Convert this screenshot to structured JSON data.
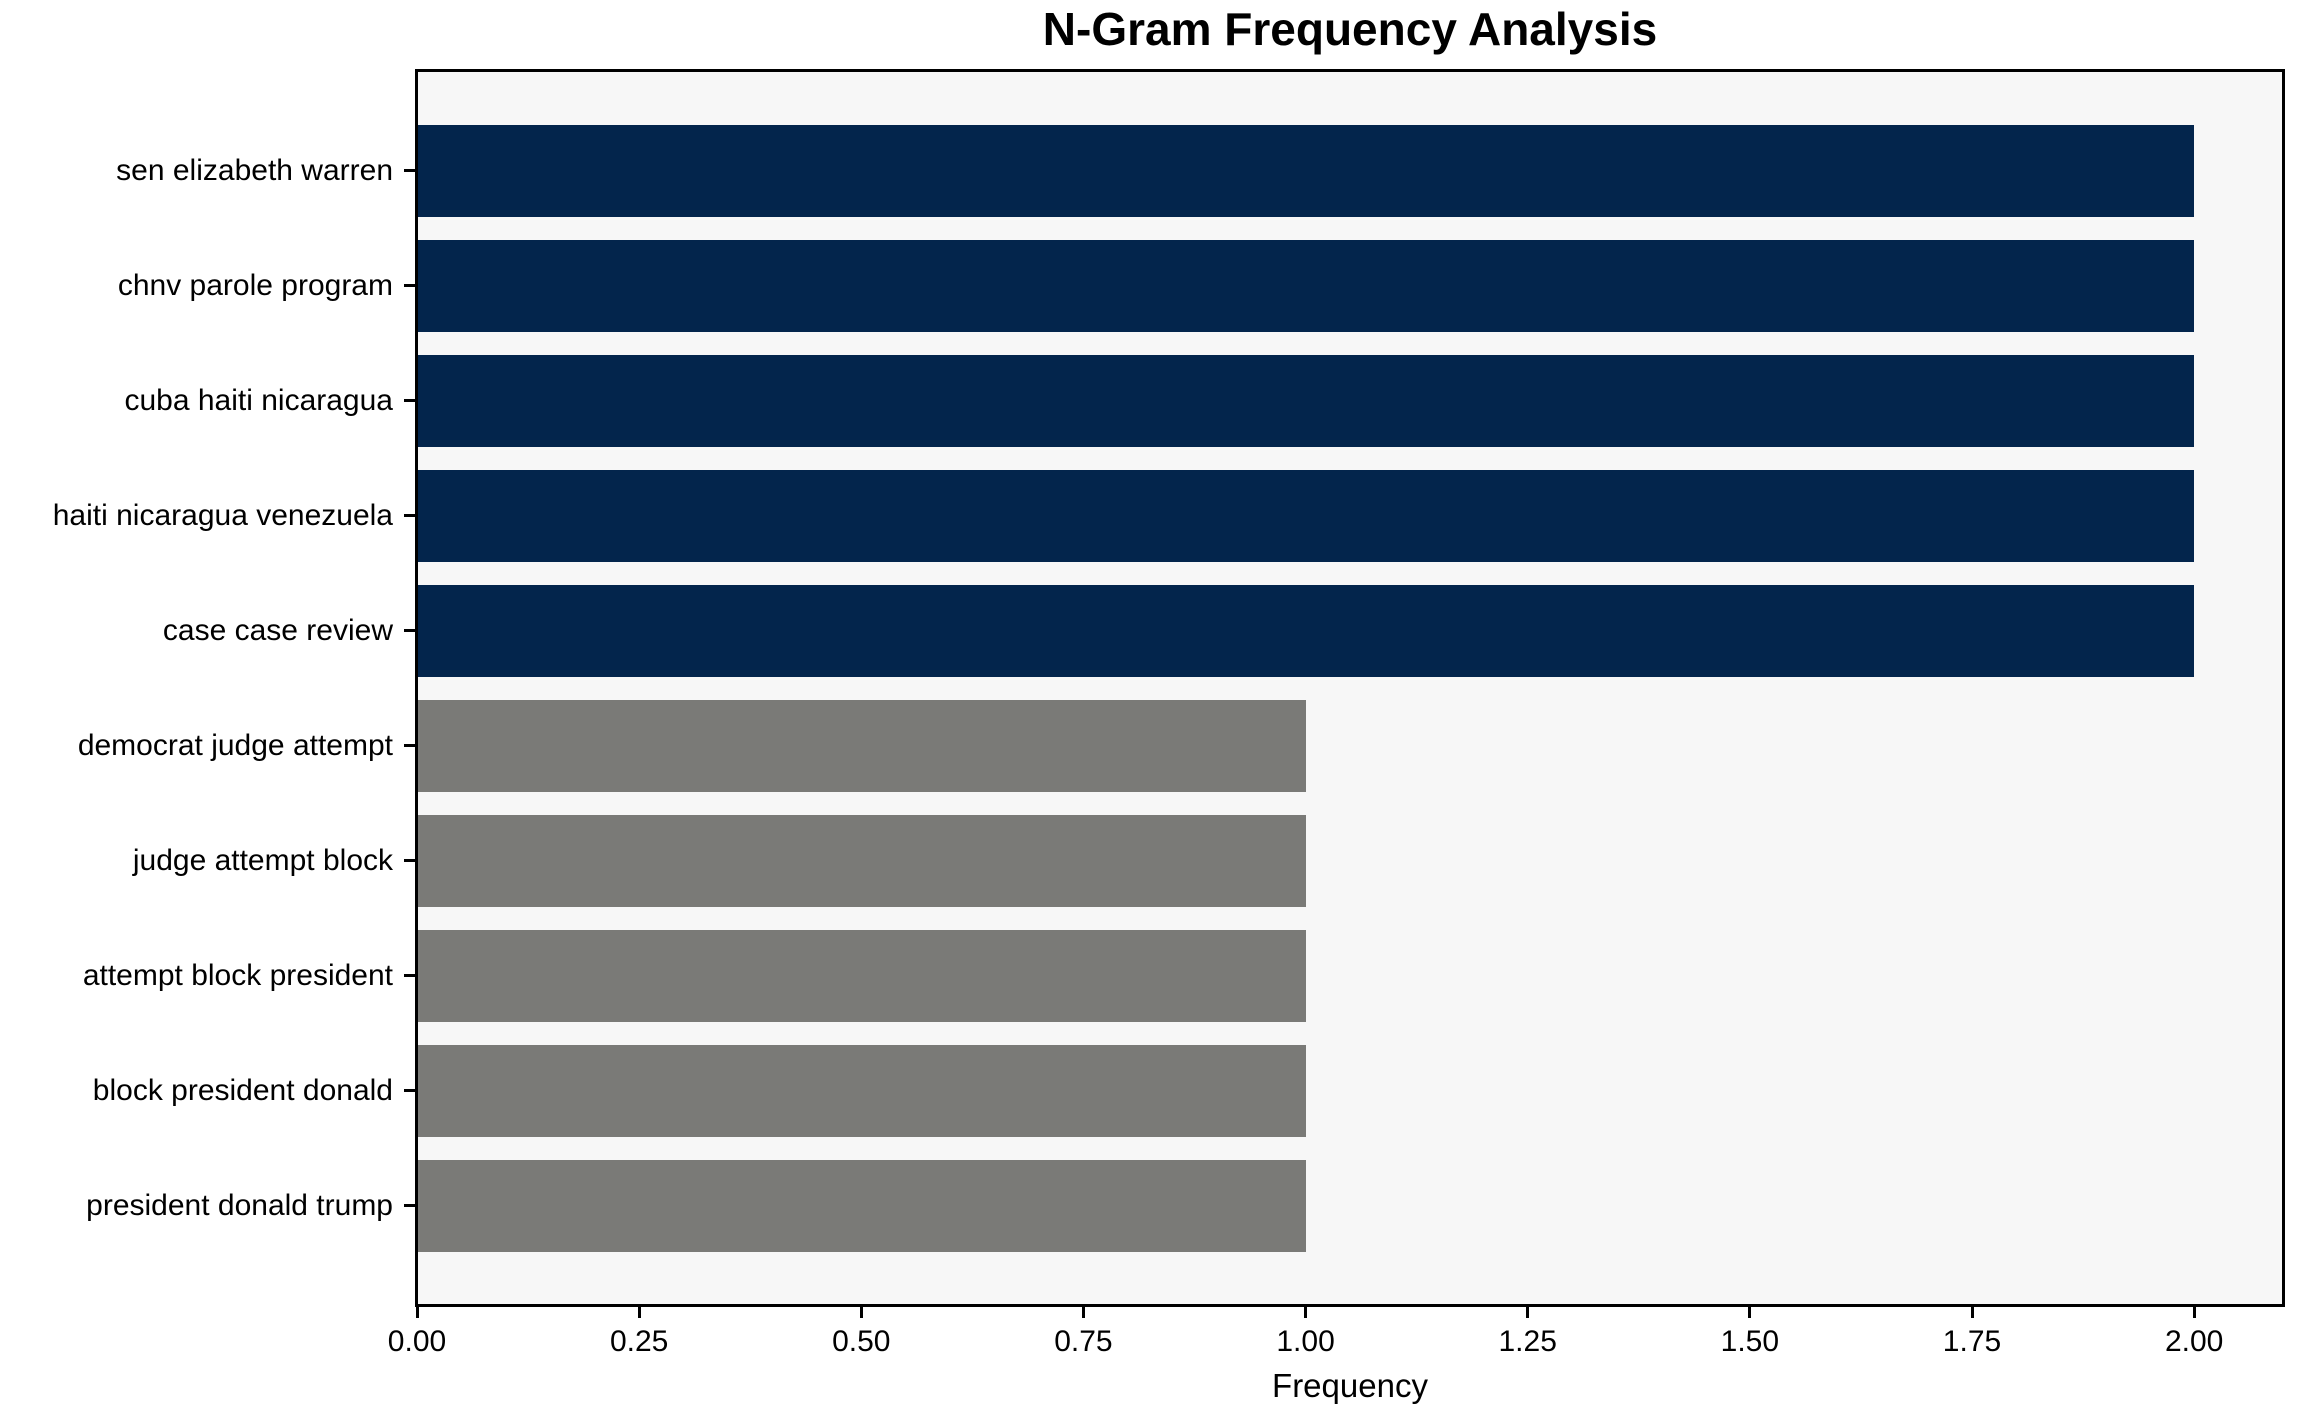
{
  "chart_data": {
    "type": "bar",
    "orientation": "horizontal",
    "title": "N-Gram Frequency Analysis",
    "xlabel": "Frequency",
    "ylabel": "",
    "categories": [
      "sen elizabeth warren",
      "chnv parole program",
      "cuba haiti nicaragua",
      "haiti nicaragua venezuela",
      "case case review",
      "democrat judge attempt",
      "judge attempt block",
      "attempt block president",
      "block president donald",
      "president donald trump"
    ],
    "values": [
      2,
      2,
      2,
      2,
      2,
      1,
      1,
      1,
      1,
      1
    ],
    "bar_colors": [
      "#03254c",
      "#03254c",
      "#03254c",
      "#03254c",
      "#03254c",
      "#7a7a77",
      "#7a7a77",
      "#7a7a77",
      "#7a7a77",
      "#7a7a77"
    ],
    "highlight_color": "#03254c",
    "base_color": "#7a7a77",
    "xlim": [
      0,
      2.1
    ],
    "x_ticks": [
      0,
      0.25,
      0.5,
      0.75,
      1.0,
      1.25,
      1.5,
      1.75,
      2.0
    ],
    "x_tick_labels": [
      "0.00",
      "0.25",
      "0.50",
      "0.75",
      "1.00",
      "1.25",
      "1.50",
      "1.75",
      "2.00"
    ],
    "grid": false,
    "legend": null,
    "bar_height_fraction": 0.8,
    "plot_background": "#f7f7f7",
    "figure_background": "#ffffff",
    "spine_color": "#000000"
  }
}
